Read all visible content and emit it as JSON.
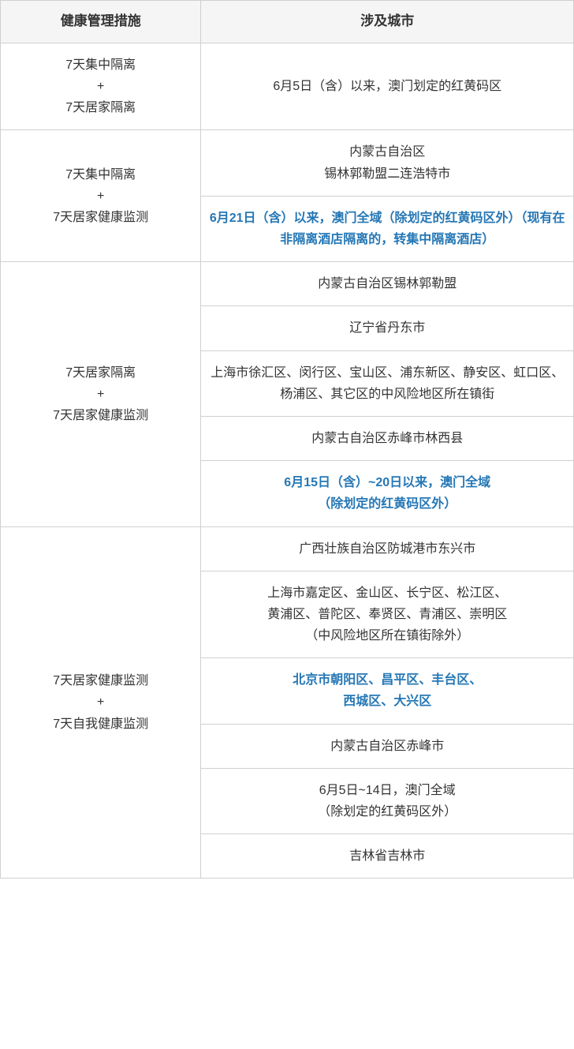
{
  "colors": {
    "border": "#d0d0d0",
    "header_bg": "#f5f5f5",
    "text": "#333333",
    "highlight": "#2577b5"
  },
  "header": {
    "col1": "健康管理措施",
    "col2": "涉及城市"
  },
  "rows": [
    {
      "measure": {
        "line1": "7天集中隔离",
        "line2": "+",
        "line3": "7天居家隔离"
      },
      "cities": [
        {
          "text": "6月5日（含）以来，澳门划定的红黄码区",
          "highlight": false
        }
      ]
    },
    {
      "measure": {
        "line1": "7天集中隔离",
        "line2": "+",
        "line3": "7天居家健康监测"
      },
      "cities": [
        {
          "text": "内蒙古自治区\n锡林郭勒盟二连浩特市",
          "highlight": false
        },
        {
          "text": "6月21日（含）以来，澳门全域（除划定的红黄码区外）（现有在非隔离酒店隔离的，转集中隔离酒店）",
          "highlight": true
        }
      ]
    },
    {
      "measure": {
        "line1": "7天居家隔离",
        "line2": "+",
        "line3": "7天居家健康监测"
      },
      "cities": [
        {
          "text": "内蒙古自治区锡林郭勒盟",
          "highlight": false
        },
        {
          "text": "辽宁省丹东市",
          "highlight": false
        },
        {
          "text": "上海市徐汇区、闵行区、宝山区、浦东新区、静安区、虹口区、杨浦区、其它区的中风险地区所在镇街",
          "highlight": false
        },
        {
          "text": "内蒙古自治区赤峰市林西县",
          "highlight": false
        },
        {
          "text": "6月15日（含）~20日以来，澳门全域\n（除划定的红黄码区外）",
          "highlight": true
        }
      ]
    },
    {
      "measure": {
        "line1": "7天居家健康监测",
        "line2": "+",
        "line3": "7天自我健康监测"
      },
      "cities": [
        {
          "text": "广西壮族自治区防城港市东兴市",
          "highlight": false
        },
        {
          "text": "上海市嘉定区、金山区、长宁区、松江区、\n黄浦区、普陀区、奉贤区、青浦区、崇明区\n（中风险地区所在镇街除外）",
          "highlight": false
        },
        {
          "text": "北京市朝阳区、昌平区、丰台区、\n西城区、大兴区",
          "highlight": true
        },
        {
          "text": "内蒙古自治区赤峰市",
          "highlight": false
        },
        {
          "text": "6月5日~14日，澳门全域\n（除划定的红黄码区外）",
          "highlight": false
        },
        {
          "text": "吉林省吉林市",
          "highlight": false
        }
      ]
    }
  ]
}
